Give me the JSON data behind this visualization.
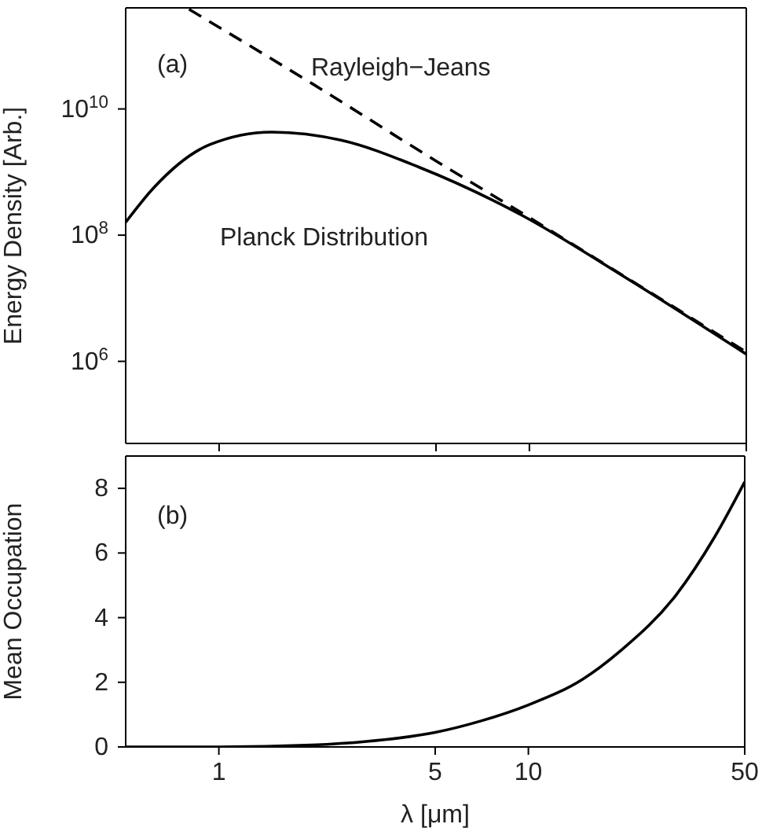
{
  "chart_data": [
    {
      "type": "line",
      "ylabel": "Energy Density [Arb.]",
      "annotations": [
        "(a)"
      ],
      "log": "xy",
      "xlim": [
        0.5,
        50
      ],
      "xticks": [
        1,
        5,
        10,
        50
      ],
      "ylim": [
        50000,
        400000000000
      ],
      "yticks": [
        {
          "value": 1000000,
          "label": "10$^{6}$"
        },
        {
          "value": 100000000,
          "label": "10$^{8}$"
        },
        {
          "value": 10000000000,
          "label": "10$^{10}$"
        }
      ],
      "tick_labels": "y",
      "series": [
        {
          "name": "Rayleigh−Jeans",
          "color": "#000000",
          "line_style": "dashed",
          "x": [
            0.8,
            2,
            5,
            10,
            20,
            50
          ],
          "values": [
            380000000000,
            25000000000,
            1500000000,
            190000000,
            23000000,
            1400000
          ]
        },
        {
          "name": "Planck Distribution",
          "color": "#000000",
          "line_style": "solid",
          "x": [
            0.5,
            0.615,
            0.93,
            1.48,
            2.47,
            4.4,
            9.4,
            20.5,
            50
          ],
          "values": [
            160000000,
            560000000,
            2700000000,
            4300000000,
            3200000000,
            1200000000,
            210000000,
            21000000,
            1300000
          ]
        }
      ]
    },
    {
      "type": "line",
      "xlabel": "λ [μm]",
      "ylabel": "Mean Occupation",
      "annotations": [
        "(b)"
      ],
      "log": "x",
      "xlim": [
        0.5,
        50
      ],
      "xticks": [
        1,
        5,
        10,
        50
      ],
      "ylim": [
        0,
        9
      ],
      "yticks": [
        0,
        2,
        4,
        6,
        8
      ],
      "series": [
        {
          "color": "#000000",
          "line_style": "solid",
          "x": [
            0.5,
            1,
            2,
            3,
            5,
            7,
            10,
            15,
            20,
            30,
            40,
            50
          ],
          "values": [
            0,
            0,
            0.06,
            0.17,
            0.45,
            0.8,
            1.3,
            2.1,
            3.0,
            4.7,
            6.5,
            8.2
          ]
        }
      ]
    }
  ]
}
